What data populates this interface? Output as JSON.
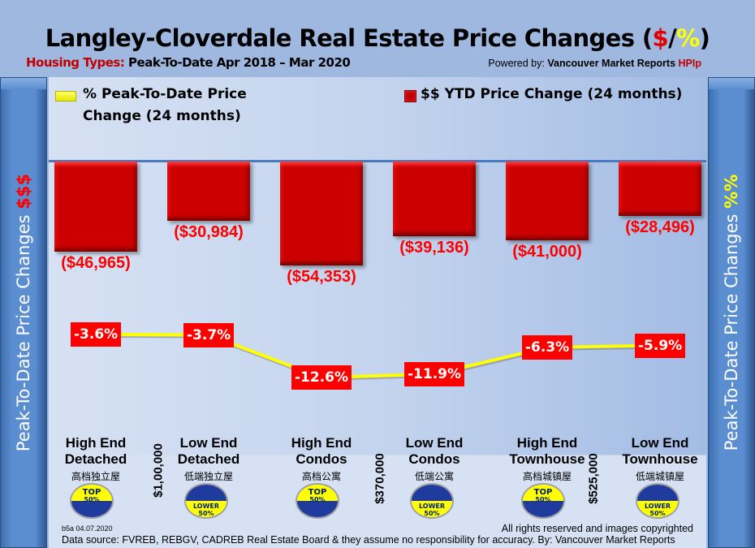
{
  "title": {
    "main": "Langley-Cloverdale Real Estate Price Changes (",
    "dollar": "$",
    "slash": "/",
    "pct": "%",
    "close": ")"
  },
  "subtitle": {
    "label": "Housing Types:",
    "period": " Peak-To-Date Apr 2018 – Mar 2020"
  },
  "powered": {
    "prefix": "Powered by: ",
    "brand": "Vancouver Market Reports ",
    "hpi": "HPIp"
  },
  "side_left": {
    "text": "Peak-To-Date Price Changes ",
    "accent": "$$$"
  },
  "side_right": {
    "text": "Peak-To-Date  Price  Changes  ",
    "accent": "%%"
  },
  "chart_data": {
    "type": "bar+line",
    "title": "Langley-Cloverdale Real Estate Price Changes ($/%)",
    "categories": [
      "High End Detached",
      "Low End Detached",
      "High End Condos",
      "Low End Condos",
      "High End Townhouse",
      "Low End Townhouse"
    ],
    "categories_cn": [
      "高档独立屋",
      "低端独立屋",
      "高档公寓",
      "低端公寓",
      "高档城镇屋",
      "低端城镇屋"
    ],
    "series": [
      {
        "name": "$$ YTD Price Change (24 months)",
        "type": "bar",
        "color": "#cc0000",
        "values": [
          -46965,
          -30984,
          -54353,
          -39136,
          -41000,
          -28496
        ],
        "labels": [
          "($46,965)",
          "($30,984)",
          "($54,353)",
          "($39,136)",
          "($41,000)",
          "($28,496)"
        ]
      },
      {
        "name": "% Peak-To-Date Price Change (24 months)",
        "type": "line",
        "color": "#ffff00",
        "values": [
          -3.6,
          -3.7,
          -12.6,
          -11.9,
          -6.3,
          -5.9
        ],
        "labels": [
          "-3.6%",
          "-3.7%",
          "-12.6%",
          "-11.9%",
          "-6.3%",
          "-5.9%"
        ]
      }
    ],
    "legend": [
      {
        "label": "% Peak-To-Date Price Change (24 months)",
        "color": "#ffff00",
        "position": "top-left"
      },
      {
        "label": "$$ YTD Price Change (24 months)",
        "color": "#cc0000",
        "position": "top-right"
      }
    ],
    "ylabel_left": "Peak-To-Date Price Changes $$$",
    "ylabel_right": "Peak-To-Date Price Changes %%",
    "grid": false
  },
  "segments": [
    {
      "badge": "TOP",
      "badge_pct": "50%",
      "kind": "top"
    },
    {
      "badge": "LOWER",
      "badge_pct": "50%",
      "kind": "lower"
    },
    {
      "badge": "TOP",
      "badge_pct": "50%",
      "kind": "top"
    },
    {
      "badge": "LOWER",
      "badge_pct": "50%",
      "kind": "lower"
    },
    {
      "badge": "TOP",
      "badge_pct": "50%",
      "kind": "top"
    },
    {
      "badge": "LOWER",
      "badge_pct": "50%",
      "kind": "lower"
    }
  ],
  "thresholds": [
    "$1,00,000",
    "$370,000",
    "$525,000"
  ],
  "colors": {
    "badge_yellow": "#ffff00",
    "badge_blue": "#1f3b9e"
  },
  "footer": {
    "version": "b5a 04.07.2020",
    "rights": "All rights reserved and  images copyrighted",
    "source": "Data source: FVREB, REBGV, CADREB Real Estate Board & they assume no responsibility for accuracy. By: Vancouver Market Reports"
  }
}
